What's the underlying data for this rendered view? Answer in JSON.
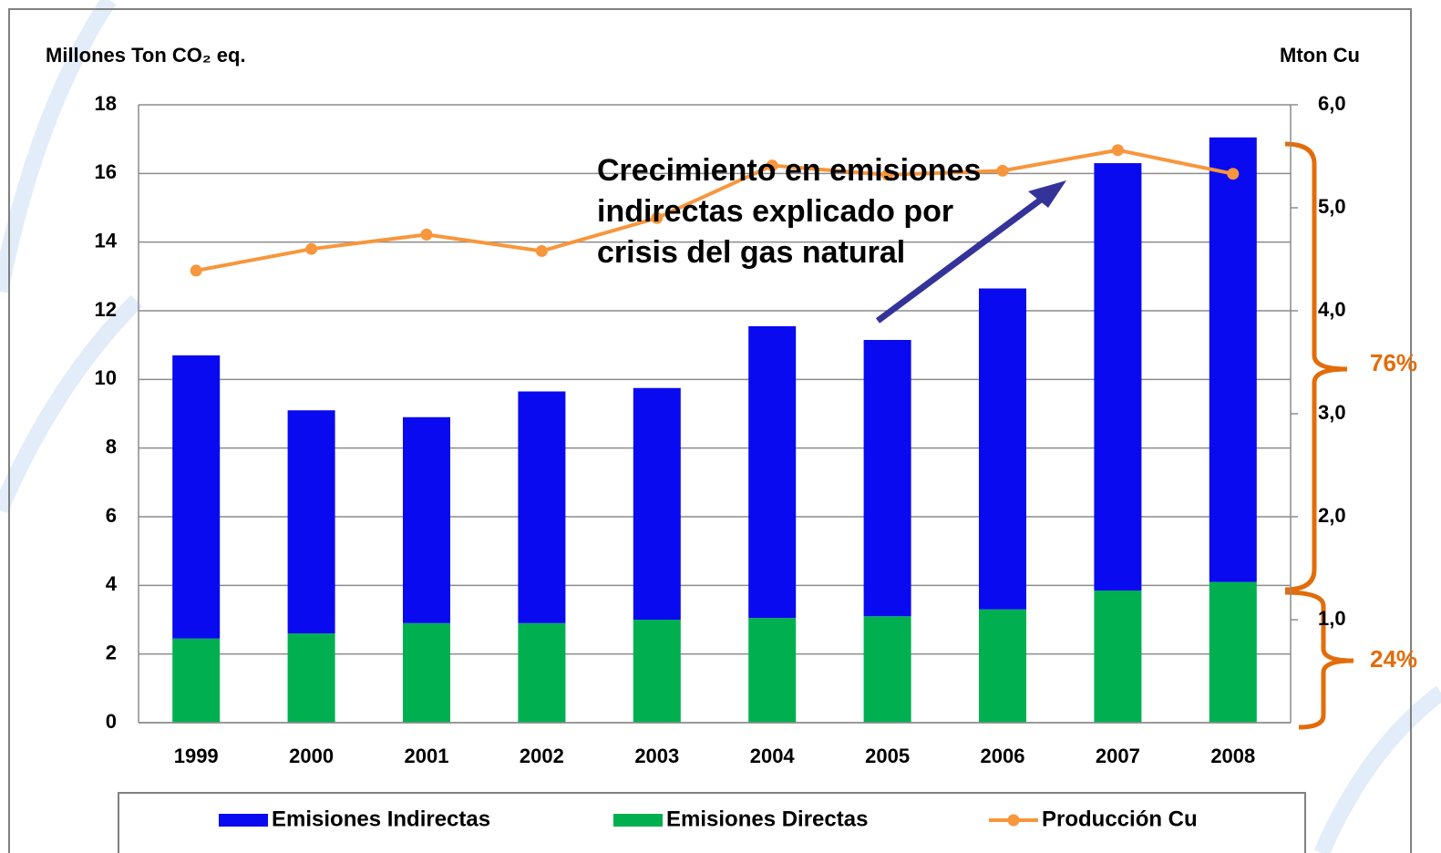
{
  "chart_data": {
    "type": "bar",
    "y_label": "Millones Ton CO₂ eq.",
    "y2_label": "Mton Cu",
    "stacked": true,
    "categories": [
      "1999",
      "2000",
      "2001",
      "2002",
      "2003",
      "2004",
      "2005",
      "2006",
      "2007",
      "2008"
    ],
    "series": [
      {
        "name": "Emisiones Directas",
        "color": "#00b050",
        "values": [
          2.45,
          2.6,
          2.9,
          2.9,
          3.0,
          3.05,
          3.1,
          3.3,
          3.85,
          4.1
        ]
      },
      {
        "name": "Emisiones Indirectas",
        "color": "#0a0af0",
        "values": [
          8.25,
          6.5,
          6.0,
          6.75,
          6.75,
          8.5,
          8.05,
          9.35,
          12.45,
          12.95
        ]
      },
      {
        "name": "Producción Cu",
        "type": "line",
        "axis": "y2",
        "color": "#f7963c",
        "values": [
          4.39,
          4.6,
          4.74,
          4.58,
          4.9,
          5.41,
          5.32,
          5.36,
          5.56,
          5.33
        ]
      }
    ],
    "ylim": [
      0,
      18
    ],
    "yticks": [
      0,
      2,
      4,
      6,
      8,
      10,
      12,
      14,
      16,
      18
    ],
    "y2lim": [
      0,
      6
    ],
    "y2ticks": [
      {
        "value": 1,
        "label": "1,0"
      },
      {
        "value": 2,
        "label": "2,0"
      },
      {
        "value": 3,
        "label": "3,0"
      },
      {
        "value": 4,
        "label": "4,0"
      },
      {
        "value": 5,
        "label": "5,0"
      },
      {
        "value": 6,
        "label": "6,0"
      }
    ],
    "grid": true,
    "legend_order": [
      1,
      0,
      2
    ],
    "annotation": [
      "Crecimiento en emisiones",
      "indirectas explicado por",
      "crisis del gas natural"
    ],
    "share_labels": [
      "76%",
      "24%"
    ]
  }
}
